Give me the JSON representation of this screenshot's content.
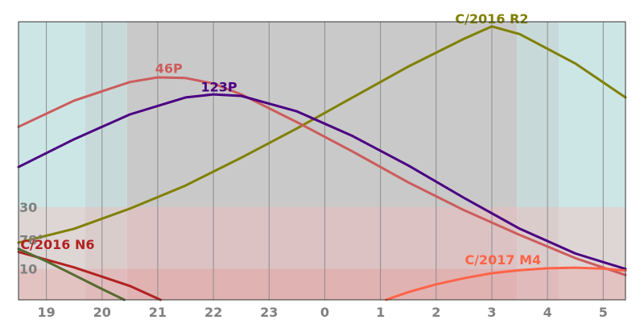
{
  "chart_data": {
    "type": "line",
    "title": "",
    "xlabel": "",
    "ylabel": "",
    "x_tick_labels": [
      "19",
      "20",
      "21",
      "22",
      "23",
      "0",
      "1",
      "2",
      "3",
      "4",
      "5"
    ],
    "x_tick_hours": [
      19,
      20,
      21,
      22,
      23,
      24,
      25,
      26,
      27,
      28,
      29
    ],
    "xlim": [
      18.5,
      29.4
    ],
    "y_tick_labels": [
      "30",
      "10"
    ],
    "y_tick_values": [
      30,
      10
    ],
    "ylim": [
      0,
      90
    ],
    "extra_label": "78°",
    "extra_label_value": 20,
    "grid": "vertical",
    "sky_bands": [
      {
        "from": 18.5,
        "to": 19.7,
        "color": "#cce6e6",
        "name": "twilight"
      },
      {
        "from": 19.7,
        "to": 20.45,
        "color": "#c8d9d9",
        "name": "twilight"
      },
      {
        "from": 20.45,
        "to": 27.45,
        "color": "#c9c9c9",
        "name": "night"
      },
      {
        "from": 27.45,
        "to": 28.2,
        "color": "#c8d9d9",
        "name": "twilight"
      },
      {
        "from": 28.2,
        "to": 29.4,
        "color": "#cce6e6",
        "name": "twilight"
      }
    ],
    "altitude_bands": [
      {
        "from": 10,
        "to": 30,
        "color": "#e6e6e6",
        "overlay": "rgba(255,180,180,0.35)"
      },
      {
        "from": 0,
        "to": 10,
        "color": "#ffd0d0",
        "overlay": "rgba(255,150,150,0.45)"
      }
    ],
    "series": [
      {
        "name": "C/2016 R2",
        "color": "#808000",
        "x": [
          18.5,
          19.5,
          20.5,
          21.5,
          22.5,
          23.5,
          24.5,
          25.5,
          26.5,
          27.0,
          27.5,
          28.5,
          29.4
        ],
        "y": [
          18.5,
          23.0,
          29.5,
          37.0,
          46.0,
          55.5,
          65.5,
          75.5,
          84.5,
          88.5,
          86.0,
          76.5,
          65.5
        ],
        "label_x": 27.0,
        "label_y": 90
      },
      {
        "name": "46P",
        "color": "#cd5c5c",
        "x": [
          18.5,
          19.5,
          20.5,
          21.0,
          21.5,
          22.0,
          22.5,
          23.5,
          24.5,
          25.5,
          26.5,
          27.5,
          28.5,
          29.4
        ],
        "y": [
          56.0,
          64.5,
          70.5,
          72.0,
          71.8,
          70.0,
          66.5,
          57.5,
          48.0,
          38.0,
          29.0,
          21.0,
          13.5,
          8.0
        ],
        "label_x": 21.2,
        "label_y": 74
      },
      {
        "name": "123P",
        "color": "#4b0082",
        "x": [
          18.5,
          19.5,
          20.5,
          21.5,
          22.0,
          22.5,
          23.5,
          24.5,
          25.5,
          26.5,
          27.5,
          28.5,
          29.4
        ],
        "y": [
          43.0,
          52.0,
          60.0,
          65.5,
          66.5,
          66.0,
          61.0,
          53.0,
          43.5,
          33.0,
          23.0,
          15.0,
          10.0
        ],
        "label_x": 22.1,
        "label_y": 68
      },
      {
        "name": "C/2016 N6",
        "color": "#b22222",
        "x": [
          18.5,
          19.5,
          20.5,
          21.05
        ],
        "y": [
          15.5,
          10.5,
          4.5,
          0.0
        ],
        "label_x": 19.2,
        "label_y": 17
      },
      {
        "name": "",
        "color": "#556b2f",
        "x": [
          18.5,
          19.0,
          19.5,
          20.0,
          20.4
        ],
        "y": [
          16.5,
          12.5,
          8.0,
          3.5,
          0.0
        ]
      },
      {
        "name": "C/2017 M4",
        "color": "#ff6347",
        "x": [
          25.1,
          25.5,
          26.0,
          26.5,
          27.0,
          27.5,
          28.0,
          28.5,
          29.0,
          29.4
        ],
        "y": [
          0.0,
          2.5,
          5.0,
          7.0,
          8.6,
          9.6,
          10.2,
          10.4,
          10.1,
          9.5
        ],
        "label_x": 27.2,
        "label_y": 12
      }
    ]
  }
}
